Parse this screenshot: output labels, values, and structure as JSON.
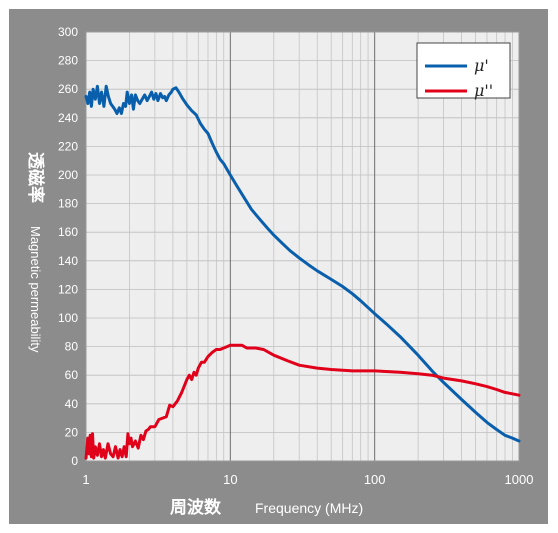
{
  "chart_data": {
    "type": "line",
    "x_scale": "log",
    "xlim": [
      1,
      1000
    ],
    "ylim": [
      0,
      300
    ],
    "grid": true,
    "legend_position": "top-right",
    "x_ticks": [
      "1",
      "10",
      "100",
      "1000"
    ],
    "y_ticks": [
      "0",
      "20",
      "40",
      "60",
      "80",
      "100",
      "120",
      "140",
      "160",
      "180",
      "200",
      "220",
      "240",
      "260",
      "280",
      "300"
    ],
    "xlabel_cn": "周波数",
    "xlabel_en": "Frequency (MHz)",
    "ylabel_cn": "透磁率",
    "ylabel_en": "Magnetic permeability",
    "series": [
      {
        "name": "μ'",
        "color": "#0a5fad",
        "points": [
          [
            1.0,
            255
          ],
          [
            1.03,
            250
          ],
          [
            1.06,
            258
          ],
          [
            1.09,
            248
          ],
          [
            1.12,
            260
          ],
          [
            1.16,
            253
          ],
          [
            1.2,
            262
          ],
          [
            1.24,
            250
          ],
          [
            1.28,
            258
          ],
          [
            1.33,
            248
          ],
          [
            1.38,
            262
          ],
          [
            1.43,
            255
          ],
          [
            1.48,
            250
          ],
          [
            1.53,
            248
          ],
          [
            1.58,
            246
          ],
          [
            1.64,
            243
          ],
          [
            1.7,
            247
          ],
          [
            1.76,
            243
          ],
          [
            1.82,
            250
          ],
          [
            1.88,
            248
          ],
          [
            1.93,
            258
          ],
          [
            2.0,
            250
          ],
          [
            2.07,
            256
          ],
          [
            2.13,
            246
          ],
          [
            2.2,
            256
          ],
          [
            2.28,
            252
          ],
          [
            2.36,
            250
          ],
          [
            2.45,
            253
          ],
          [
            2.55,
            256
          ],
          [
            2.65,
            252
          ],
          [
            2.75,
            255
          ],
          [
            2.85,
            258
          ],
          [
            2.95,
            253
          ],
          [
            3.05,
            257
          ],
          [
            3.15,
            252
          ],
          [
            3.28,
            257
          ],
          [
            3.4,
            254
          ],
          [
            3.5,
            255
          ],
          [
            3.6,
            252
          ],
          [
            3.75,
            256
          ],
          [
            3.9,
            258
          ],
          [
            4.0,
            260
          ],
          [
            4.2,
            261
          ],
          [
            4.4,
            258
          ],
          [
            4.7,
            253
          ],
          [
            5.0,
            249
          ],
          [
            5.4,
            245
          ],
          [
            5.8,
            242
          ],
          [
            6.2,
            236
          ],
          [
            6.6,
            232
          ],
          [
            7.0,
            229
          ],
          [
            7.5,
            222
          ],
          [
            8.0,
            216
          ],
          [
            8.5,
            211
          ],
          [
            9.0,
            208
          ],
          [
            10.0,
            200
          ],
          [
            11.0,
            193
          ],
          [
            12.5,
            184
          ],
          [
            14.0,
            176
          ],
          [
            16.0,
            169
          ],
          [
            18.0,
            163
          ],
          [
            20.0,
            158
          ],
          [
            23.0,
            152
          ],
          [
            26.0,
            147
          ],
          [
            30.0,
            142
          ],
          [
            35.0,
            137
          ],
          [
            40.0,
            133
          ],
          [
            50.0,
            127
          ],
          [
            60.0,
            122
          ],
          [
            70.0,
            117
          ],
          [
            80.0,
            112
          ],
          [
            100.0,
            103
          ],
          [
            120.0,
            96
          ],
          [
            150.0,
            87
          ],
          [
            200.0,
            74
          ],
          [
            250.0,
            63
          ],
          [
            300.0,
            55
          ],
          [
            400.0,
            43
          ],
          [
            500.0,
            34
          ],
          [
            600.0,
            27
          ],
          [
            700.0,
            22
          ],
          [
            800.0,
            18
          ],
          [
            900.0,
            16
          ],
          [
            1000.0,
            14
          ]
        ]
      },
      {
        "name": "μ''",
        "color": "#e0001a",
        "points": [
          [
            1.0,
            2
          ],
          [
            1.03,
            16
          ],
          [
            1.05,
            5
          ],
          [
            1.07,
            18
          ],
          [
            1.09,
            3
          ],
          [
            1.11,
            19
          ],
          [
            1.13,
            2
          ],
          [
            1.16,
            10
          ],
          [
            1.2,
            4
          ],
          [
            1.24,
            12
          ],
          [
            1.28,
            3
          ],
          [
            1.32,
            8
          ],
          [
            1.36,
            2
          ],
          [
            1.42,
            12
          ],
          [
            1.48,
            5
          ],
          [
            1.54,
            3
          ],
          [
            1.6,
            10
          ],
          [
            1.67,
            2
          ],
          [
            1.72,
            8
          ],
          [
            1.78,
            3
          ],
          [
            1.84,
            10
          ],
          [
            1.9,
            3
          ],
          [
            1.95,
            19
          ],
          [
            2.0,
            12
          ],
          [
            2.05,
            16
          ],
          [
            2.1,
            10
          ],
          [
            2.2,
            14
          ],
          [
            2.3,
            9
          ],
          [
            2.4,
            18
          ],
          [
            2.5,
            15
          ],
          [
            2.6,
            21
          ],
          [
            2.7,
            22
          ],
          [
            2.8,
            24
          ],
          [
            3.0,
            24
          ],
          [
            3.2,
            29
          ],
          [
            3.4,
            30
          ],
          [
            3.6,
            31
          ],
          [
            3.8,
            39
          ],
          [
            4.0,
            38
          ],
          [
            4.3,
            42
          ],
          [
            4.6,
            48
          ],
          [
            5.0,
            57
          ],
          [
            5.2,
            60
          ],
          [
            5.4,
            57
          ],
          [
            5.6,
            62
          ],
          [
            5.8,
            60
          ],
          [
            6.0,
            65
          ],
          [
            6.3,
            69
          ],
          [
            6.6,
            69
          ],
          [
            7.0,
            73
          ],
          [
            7.5,
            76
          ],
          [
            8.0,
            78
          ],
          [
            8.5,
            78
          ],
          [
            9.0,
            79
          ],
          [
            9.5,
            80
          ],
          [
            10.0,
            81
          ],
          [
            11.0,
            81
          ],
          [
            12.0,
            81
          ],
          [
            13.0,
            79
          ],
          [
            15.0,
            79
          ],
          [
            17.0,
            78
          ],
          [
            20.0,
            74
          ],
          [
            25.0,
            70
          ],
          [
            30.0,
            67
          ],
          [
            40.0,
            65
          ],
          [
            50.0,
            64
          ],
          [
            70.0,
            63
          ],
          [
            100.0,
            63
          ],
          [
            150.0,
            62
          ],
          [
            200.0,
            61
          ],
          [
            250.0,
            60
          ],
          [
            300.0,
            58
          ],
          [
            400.0,
            56
          ],
          [
            500.0,
            54
          ],
          [
            600.0,
            52
          ],
          [
            700.0,
            50
          ],
          [
            800.0,
            48
          ],
          [
            900.0,
            47
          ],
          [
            1000.0,
            46
          ]
        ]
      }
    ]
  }
}
